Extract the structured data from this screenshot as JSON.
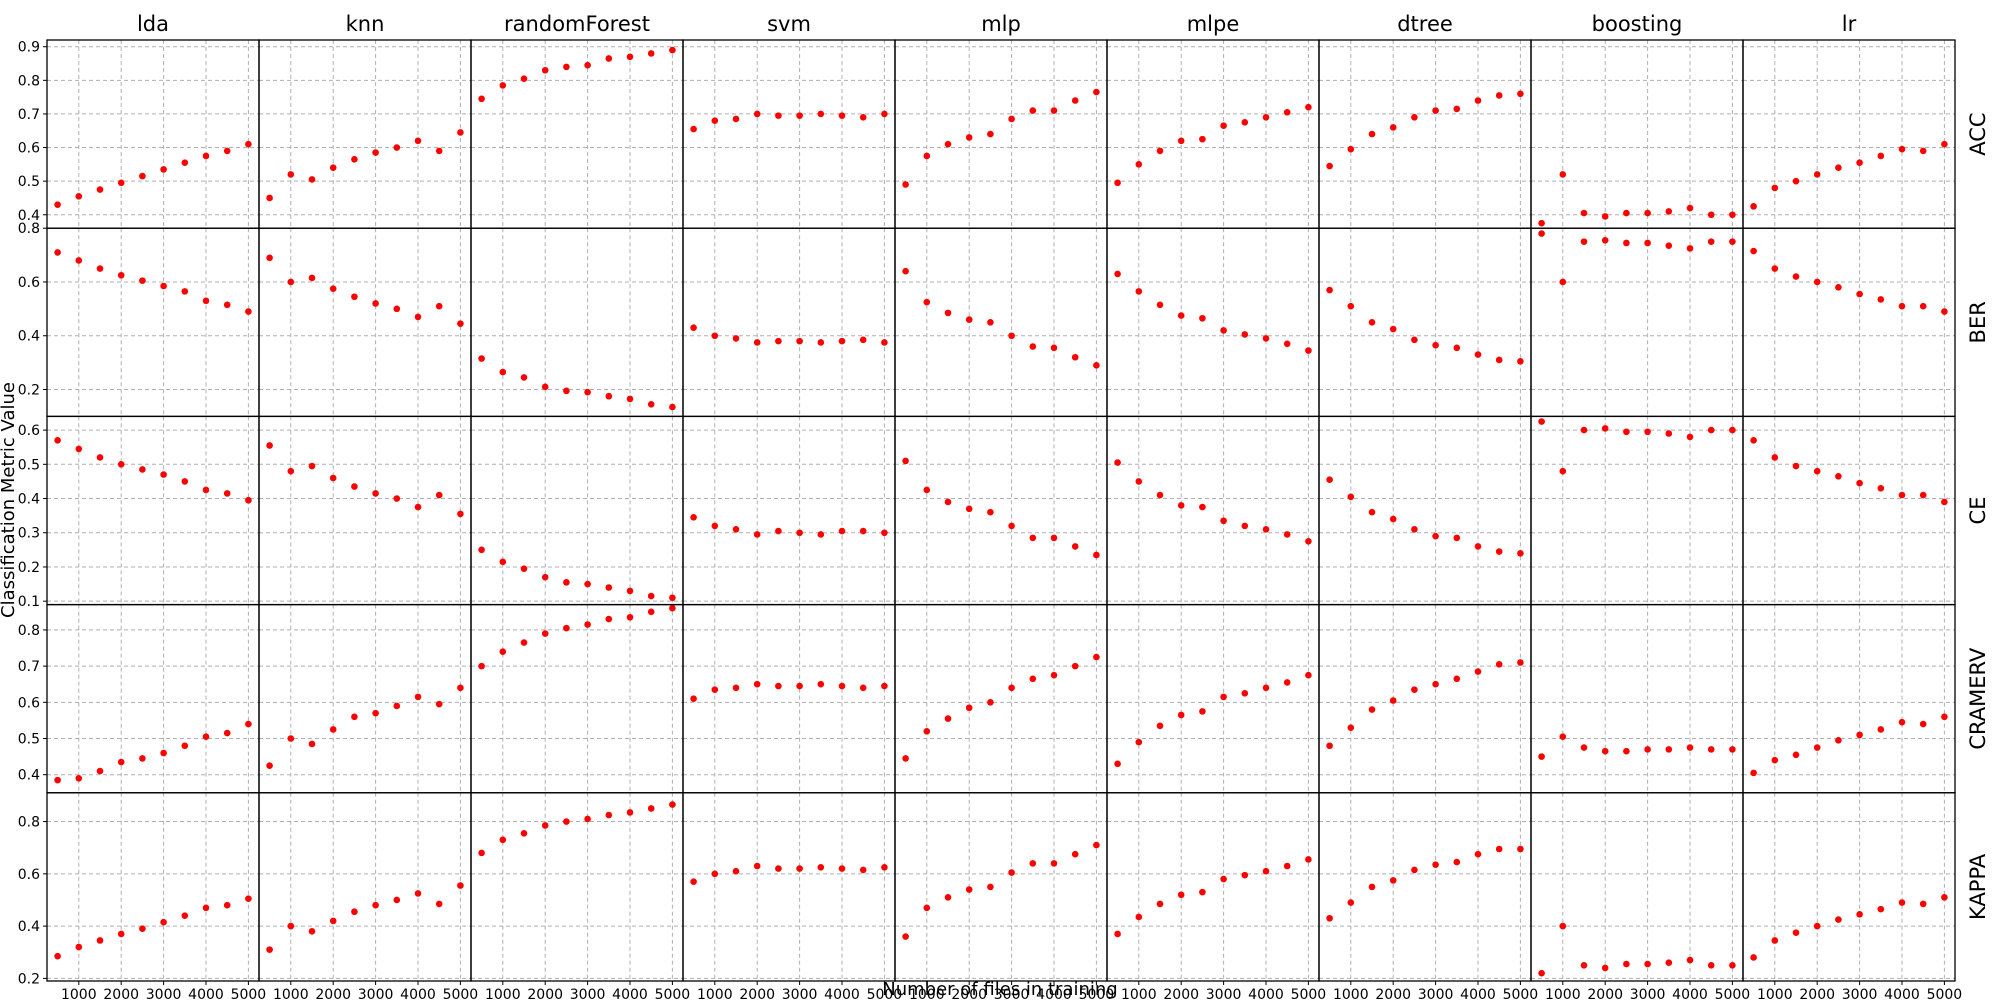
{
  "chart_data": {
    "type": "scatter",
    "layout": "facet-grid",
    "xlabel": "Number of files in training",
    "ylabel": "Classification Metric Value",
    "columns": [
      "lda",
      "knn",
      "randomForest",
      "svm",
      "mlp",
      "mlpe",
      "dtree",
      "boosting",
      "lr"
    ],
    "rows": [
      "ACC",
      "BER",
      "CE",
      "CRAMERV",
      "KAPPA"
    ],
    "x": [
      500,
      1000,
      1500,
      2000,
      2500,
      3000,
      3500,
      4000,
      4500,
      5000
    ],
    "xlim": [
      250,
      5250
    ],
    "xticks": [
      1000,
      2000,
      3000,
      4000,
      5000
    ],
    "row_ylims": {
      "ACC": [
        0.36,
        0.92
      ],
      "BER": [
        0.1,
        0.8
      ],
      "CE": [
        0.09,
        0.64
      ],
      "CRAMERV": [
        0.35,
        0.87
      ],
      "KAPPA": [
        0.19,
        0.91
      ]
    },
    "row_yticks": {
      "ACC": [
        0.4,
        0.5,
        0.6,
        0.7,
        0.8,
        0.9
      ],
      "BER": [
        0.2,
        0.4,
        0.6,
        0.8
      ],
      "CE": [
        0.1,
        0.2,
        0.3,
        0.4,
        0.5,
        0.6
      ],
      "CRAMERV": [
        0.4,
        0.5,
        0.6,
        0.7,
        0.8
      ],
      "KAPPA": [
        0.2,
        0.4,
        0.6,
        0.8
      ]
    },
    "marker_color": "#ff0000",
    "grid": true,
    "values": {
      "ACC": {
        "lda": [
          0.43,
          0.455,
          0.475,
          0.495,
          0.515,
          0.535,
          0.555,
          0.575,
          0.59,
          0.61
        ],
        "knn": [
          0.45,
          0.52,
          0.505,
          0.54,
          0.565,
          0.585,
          0.6,
          0.62,
          0.59,
          0.645
        ],
        "randomForest": [
          0.745,
          0.785,
          0.805,
          0.83,
          0.84,
          0.845,
          0.865,
          0.87,
          0.88,
          0.89
        ],
        "svm": [
          0.655,
          0.68,
          0.685,
          0.7,
          0.695,
          0.695,
          0.7,
          0.695,
          0.69,
          0.7
        ],
        "mlp": [
          0.49,
          0.575,
          0.61,
          0.63,
          0.64,
          0.685,
          0.71,
          0.71,
          0.74,
          0.765
        ],
        "mlpe": [
          0.495,
          0.55,
          0.59,
          0.62,
          0.625,
          0.665,
          0.675,
          0.69,
          0.705,
          0.72
        ],
        "dtree": [
          0.545,
          0.595,
          0.64,
          0.66,
          0.69,
          0.71,
          0.715,
          0.74,
          0.755,
          0.76
        ],
        "boosting": [
          0.375,
          0.52,
          0.405,
          0.395,
          0.405,
          0.405,
          0.41,
          0.42,
          0.4,
          0.4
        ],
        "lr": [
          0.425,
          0.48,
          0.5,
          0.52,
          0.54,
          0.555,
          0.575,
          0.595,
          0.59,
          0.61
        ]
      },
      "BER": {
        "lda": [
          0.71,
          0.68,
          0.65,
          0.625,
          0.605,
          0.585,
          0.565,
          0.53,
          0.515,
          0.49
        ],
        "knn": [
          0.69,
          0.6,
          0.615,
          0.575,
          0.545,
          0.52,
          0.5,
          0.47,
          0.51,
          0.445
        ],
        "randomForest": [
          0.315,
          0.265,
          0.245,
          0.21,
          0.195,
          0.19,
          0.175,
          0.165,
          0.145,
          0.135
        ],
        "svm": [
          0.43,
          0.4,
          0.39,
          0.375,
          0.38,
          0.38,
          0.375,
          0.38,
          0.385,
          0.375
        ],
        "mlp": [
          0.64,
          0.525,
          0.485,
          0.46,
          0.45,
          0.4,
          0.36,
          0.355,
          0.32,
          0.29
        ],
        "mlpe": [
          0.63,
          0.565,
          0.515,
          0.475,
          0.465,
          0.42,
          0.405,
          0.39,
          0.37,
          0.345
        ],
        "dtree": [
          0.57,
          0.51,
          0.45,
          0.425,
          0.385,
          0.365,
          0.355,
          0.33,
          0.31,
          0.305
        ],
        "boosting": [
          0.78,
          0.6,
          0.75,
          0.755,
          0.745,
          0.745,
          0.735,
          0.725,
          0.75,
          0.75
        ],
        "lr": [
          0.715,
          0.65,
          0.62,
          0.6,
          0.58,
          0.555,
          0.535,
          0.51,
          0.51,
          0.49
        ]
      },
      "CE": {
        "lda": [
          0.57,
          0.545,
          0.52,
          0.5,
          0.485,
          0.47,
          0.45,
          0.425,
          0.415,
          0.395
        ],
        "knn": [
          0.555,
          0.48,
          0.495,
          0.46,
          0.435,
          0.415,
          0.4,
          0.375,
          0.41,
          0.355
        ],
        "randomForest": [
          0.25,
          0.215,
          0.195,
          0.17,
          0.155,
          0.15,
          0.14,
          0.13,
          0.115,
          0.11
        ],
        "svm": [
          0.345,
          0.32,
          0.31,
          0.295,
          0.305,
          0.3,
          0.295,
          0.305,
          0.305,
          0.3
        ],
        "mlp": [
          0.51,
          0.425,
          0.39,
          0.37,
          0.36,
          0.32,
          0.285,
          0.285,
          0.26,
          0.235
        ],
        "mlpe": [
          0.505,
          0.45,
          0.41,
          0.38,
          0.375,
          0.335,
          0.32,
          0.31,
          0.295,
          0.275
        ],
        "dtree": [
          0.455,
          0.405,
          0.36,
          0.34,
          0.31,
          0.29,
          0.285,
          0.26,
          0.245,
          0.24
        ],
        "boosting": [
          0.625,
          0.48,
          0.6,
          0.605,
          0.595,
          0.595,
          0.59,
          0.58,
          0.6,
          0.6
        ],
        "lr": [
          0.57,
          0.52,
          0.495,
          0.48,
          0.465,
          0.445,
          0.43,
          0.41,
          0.41,
          0.39
        ]
      },
      "CRAMERV": {
        "lda": [
          0.385,
          0.39,
          0.41,
          0.435,
          0.445,
          0.46,
          0.48,
          0.505,
          0.515,
          0.54
        ],
        "knn": [
          0.425,
          0.5,
          0.485,
          0.525,
          0.56,
          0.57,
          0.59,
          0.615,
          0.595,
          0.64
        ],
        "randomForest": [
          0.7,
          0.74,
          0.765,
          0.79,
          0.805,
          0.815,
          0.83,
          0.835,
          0.85,
          0.86
        ],
        "svm": [
          0.61,
          0.635,
          0.64,
          0.65,
          0.645,
          0.645,
          0.65,
          0.645,
          0.64,
          0.645
        ],
        "mlp": [
          0.445,
          0.52,
          0.555,
          0.585,
          0.6,
          0.64,
          0.665,
          0.675,
          0.7,
          0.725
        ],
        "mlpe": [
          0.43,
          0.49,
          0.535,
          0.565,
          0.575,
          0.615,
          0.625,
          0.64,
          0.655,
          0.675
        ],
        "dtree": [
          0.48,
          0.53,
          0.58,
          0.605,
          0.635,
          0.65,
          0.665,
          0.685,
          0.705,
          0.71
        ],
        "boosting": [
          0.45,
          0.505,
          0.475,
          0.465,
          0.465,
          0.47,
          0.47,
          0.475,
          0.47,
          0.47
        ],
        "lr": [
          0.405,
          0.44,
          0.455,
          0.475,
          0.495,
          0.51,
          0.525,
          0.545,
          0.54,
          0.56
        ]
      },
      "KAPPA": {
        "lda": [
          0.285,
          0.32,
          0.345,
          0.37,
          0.39,
          0.415,
          0.44,
          0.47,
          0.48,
          0.505
        ],
        "knn": [
          0.31,
          0.4,
          0.38,
          0.42,
          0.455,
          0.48,
          0.5,
          0.525,
          0.485,
          0.555
        ],
        "randomForest": [
          0.68,
          0.73,
          0.755,
          0.785,
          0.8,
          0.81,
          0.825,
          0.835,
          0.85,
          0.865
        ],
        "svm": [
          0.57,
          0.6,
          0.61,
          0.63,
          0.62,
          0.62,
          0.625,
          0.62,
          0.615,
          0.625
        ],
        "mlp": [
          0.36,
          0.47,
          0.51,
          0.54,
          0.55,
          0.605,
          0.64,
          0.64,
          0.675,
          0.71
        ],
        "mlpe": [
          0.37,
          0.435,
          0.485,
          0.52,
          0.53,
          0.58,
          0.595,
          0.61,
          0.63,
          0.655
        ],
        "dtree": [
          0.43,
          0.49,
          0.55,
          0.575,
          0.615,
          0.635,
          0.645,
          0.675,
          0.695,
          0.695
        ],
        "boosting": [
          0.22,
          0.4,
          0.25,
          0.24,
          0.255,
          0.255,
          0.26,
          0.27,
          0.25,
          0.25
        ],
        "lr": [
          0.28,
          0.345,
          0.375,
          0.4,
          0.425,
          0.445,
          0.465,
          0.49,
          0.485,
          0.51
        ]
      }
    }
  }
}
